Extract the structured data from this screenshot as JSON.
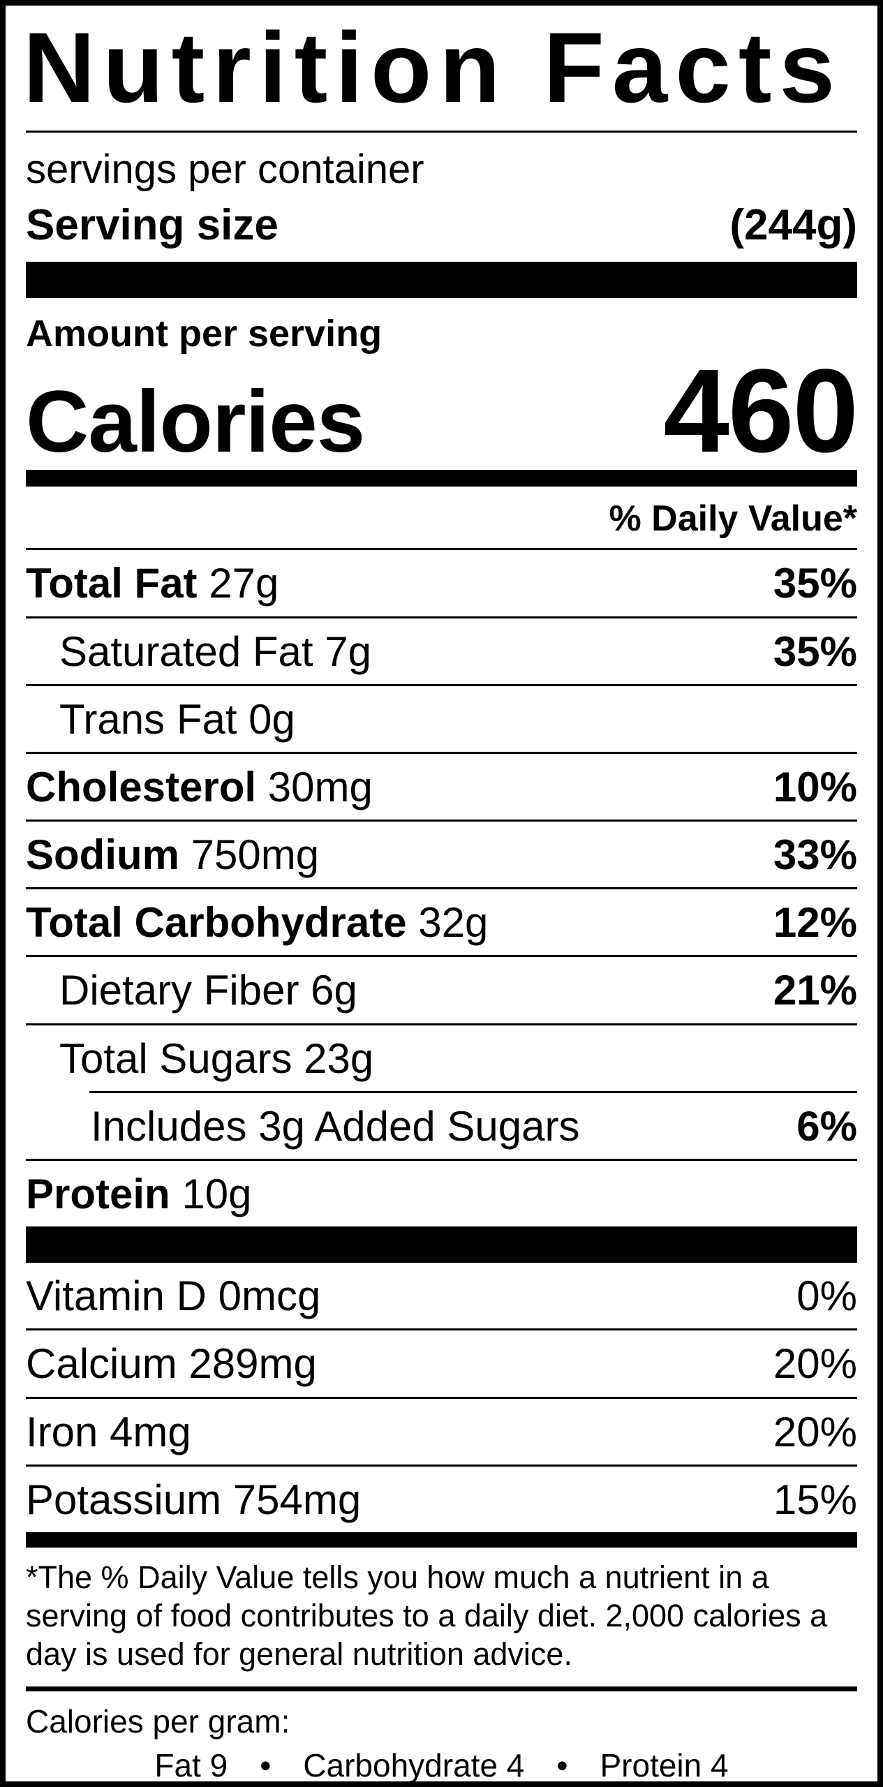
{
  "title": "Nutrition Facts",
  "serving": {
    "servings_per_container": "servings per container",
    "serving_size_label": "Serving size",
    "serving_size_value": "(244g)"
  },
  "calories": {
    "amount_label": "Amount per serving",
    "label": "Calories",
    "value": "460"
  },
  "daily_value_header": "% Daily Value*",
  "nutrients": [
    {
      "name": "Total Fat",
      "amount": "27g",
      "dv": "35%",
      "bold": true,
      "indent": 0
    },
    {
      "name": "Saturated Fat",
      "amount": "7g",
      "dv": "35%",
      "bold": false,
      "indent": 1
    },
    {
      "name": "Trans Fat",
      "amount": "0g",
      "dv": "",
      "bold": false,
      "indent": 1
    },
    {
      "name": "Cholesterol",
      "amount": "30mg",
      "dv": "10%",
      "bold": true,
      "indent": 0
    },
    {
      "name": "Sodium",
      "amount": "750mg",
      "dv": "33%",
      "bold": true,
      "indent": 0
    },
    {
      "name": "Total Carbohydrate",
      "amount": "32g",
      "dv": "12%",
      "bold": true,
      "indent": 0
    },
    {
      "name": "Dietary Fiber",
      "amount": "6g",
      "dv": "21%",
      "bold": false,
      "indent": 1
    },
    {
      "name": "Total Sugars",
      "amount": "23g",
      "dv": "",
      "bold": false,
      "indent": 1,
      "no_rule": true
    },
    {
      "name": "Includes 3g Added Sugars",
      "amount": "",
      "dv": "6%",
      "bold": false,
      "indent": 2,
      "inset_rule_above": true
    },
    {
      "name": "Protein",
      "amount": "10g",
      "dv": "",
      "bold": true,
      "indent": 0,
      "no_rule": true
    }
  ],
  "vitamins": [
    {
      "name": "Vitamin D",
      "amount": "0mcg",
      "dv": "0%"
    },
    {
      "name": "Calcium",
      "amount": "289mg",
      "dv": "20%"
    },
    {
      "name": "Iron",
      "amount": "4mg",
      "dv": "20%"
    },
    {
      "name": "Potassium",
      "amount": "754mg",
      "dv": "15%",
      "no_rule": true
    }
  ],
  "footnote": "*The % Daily Value tells you how much a nutrient in a serving of food contributes to a daily diet. 2,000 calories a day is used for general nutrition advice.",
  "calories_per_gram": {
    "label": "Calories per gram:",
    "items": [
      "Fat 9",
      "Carbohydrate 4",
      "Protein 4"
    ],
    "separator": "•"
  },
  "colors": {
    "ink": "#000000",
    "paper": "#ffffff"
  }
}
